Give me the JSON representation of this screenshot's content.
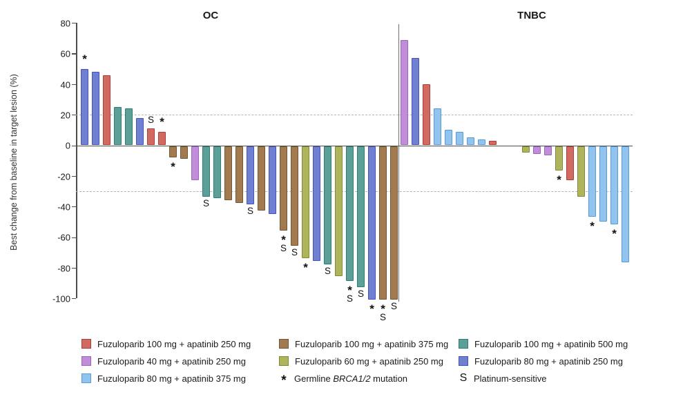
{
  "chart_data": {
    "type": "bar",
    "subtype": "waterfall",
    "ylabel": "Best change from baseline in target lesion (%)",
    "ylim": [
      -100,
      80
    ],
    "y_axis": {
      "ticks": [
        80,
        60,
        40,
        20,
        0,
        -20,
        -40,
        -60,
        -80,
        -100
      ]
    },
    "reference_lines": [
      20,
      -30
    ],
    "grid": "off",
    "legend_position": "bottom",
    "groups": {
      "f100a250": {
        "label": "Fuzuloparib 100 mg + apatinib 250 mg",
        "fill": "#D16A60",
        "border": "#B03C35"
      },
      "f100a375": {
        "label": "Fuzuloparib 100 mg + apatinib 375 mg",
        "fill": "#A17B4F",
        "border": "#71572F"
      },
      "f100a500": {
        "label": "Fuzuloparib 100 mg + apatinib 500 mg",
        "fill": "#5C9F98",
        "border": "#2E7D73"
      },
      "f40a250": {
        "label": "Fuzuloparib 40 mg + apatinib 250 mg",
        "fill": "#C08DD8",
        "border": "#9C64BE"
      },
      "f60a250": {
        "label": "Fuzuloparib 60 mg + apatinib 250 mg",
        "fill": "#AFB45C",
        "border": "#7F8B36"
      },
      "f80a250": {
        "label": "Fuzuloparib 80 mg + apatinib 250 mg",
        "fill": "#7080CF",
        "border": "#4353BE"
      },
      "f80a375": {
        "label": "Fuzuloparib 80 mg + apatinib 375 mg",
        "fill": "#90C4EC",
        "border": "#569ADE"
      }
    },
    "markers": {
      "star": {
        "symbol": "*",
        "label_prefix": "Germline ",
        "label_italic": "BRCA1/2",
        "label_suffix": " mutation"
      },
      "s": {
        "symbol": "S",
        "label": "Platinum-sensitive"
      }
    },
    "legend_columns": [
      [
        "f100a250",
        "f40a250",
        "f80a375"
      ],
      [
        "f100a375",
        "f60a250",
        "star"
      ],
      [
        "f100a500",
        "f80a250",
        "s"
      ]
    ],
    "panels": [
      {
        "name": "OC",
        "bars": [
          {
            "slot": 0,
            "group": "f80a250",
            "value": 50,
            "mark": "*"
          },
          {
            "slot": 1,
            "group": "f80a250",
            "value": 48
          },
          {
            "slot": 2,
            "group": "f100a250",
            "value": 46
          },
          {
            "slot": 3,
            "group": "f100a500",
            "value": 25
          },
          {
            "slot": 4,
            "group": "f100a500",
            "value": 24
          },
          {
            "slot": 5,
            "group": "f80a250",
            "value": 18
          },
          {
            "slot": 6,
            "group": "f100a250",
            "value": 11,
            "mark": "S"
          },
          {
            "slot": 7,
            "group": "f100a250",
            "value": 9,
            "mark": "*"
          },
          {
            "slot": 8,
            "group": "f100a375",
            "value": -7,
            "mark": "*"
          },
          {
            "slot": 9,
            "group": "f100a375",
            "value": -8
          },
          {
            "slot": 10,
            "group": "f40a250",
            "value": -22
          },
          {
            "slot": 11,
            "group": "f100a500",
            "value": -33,
            "mark": "S"
          },
          {
            "slot": 12,
            "group": "f100a500",
            "value": -34
          },
          {
            "slot": 13,
            "group": "f100a375",
            "value": -35
          },
          {
            "slot": 14,
            "group": "f100a375",
            "value": -37
          },
          {
            "slot": 15,
            "group": "f80a250",
            "value": -38,
            "mark": "S"
          },
          {
            "slot": 16,
            "group": "f100a375",
            "value": -42
          },
          {
            "slot": 17,
            "group": "f80a250",
            "value": -44
          },
          {
            "slot": 18,
            "group": "f100a375",
            "value": -55,
            "mark": "*S"
          },
          {
            "slot": 19,
            "group": "f100a375",
            "value": -65,
            "mark": "S"
          },
          {
            "slot": 20,
            "group": "f60a250",
            "value": -73,
            "mark": "*"
          },
          {
            "slot": 21,
            "group": "f80a250",
            "value": -75
          },
          {
            "slot": 22,
            "group": "f100a500",
            "value": -77,
            "mark": "S"
          },
          {
            "slot": 23,
            "group": "f60a250",
            "value": -85
          },
          {
            "slot": 24,
            "group": "f100a500",
            "value": -88,
            "mark": "*S"
          },
          {
            "slot": 25,
            "group": "f100a500",
            "value": -92,
            "mark": "S"
          },
          {
            "slot": 26,
            "group": "f80a250",
            "value": -100,
            "mark": "*"
          },
          {
            "slot": 27,
            "group": "f100a375",
            "value": -100,
            "mark": "*S"
          },
          {
            "slot": 28,
            "group": "f100a375",
            "value": -100,
            "mark": "S"
          }
        ]
      },
      {
        "name": "TNBC",
        "bars": [
          {
            "slot": 0,
            "group": "f40a250",
            "value": 69
          },
          {
            "slot": 1,
            "group": "f80a250",
            "value": 57
          },
          {
            "slot": 2,
            "group": "f100a250",
            "value": 40
          },
          {
            "slot": 3,
            "group": "f80a375",
            "value": 24
          },
          {
            "slot": 4,
            "group": "f80a375",
            "value": 10
          },
          {
            "slot": 5,
            "group": "f80a375",
            "value": 9
          },
          {
            "slot": 6,
            "group": "f80a375",
            "value": 5
          },
          {
            "slot": 7,
            "group": "f80a375",
            "value": 4
          },
          {
            "slot": 8,
            "group": "f100a250",
            "value": 3
          },
          {
            "slot": 11,
            "group": "f60a250",
            "value": -4
          },
          {
            "slot": 12,
            "group": "f40a250",
            "value": -5
          },
          {
            "slot": 13,
            "group": "f40a250",
            "value": -6
          },
          {
            "slot": 14,
            "group": "f60a250",
            "value": -16,
            "mark": "*"
          },
          {
            "slot": 15,
            "group": "f100a250",
            "value": -22
          },
          {
            "slot": 16,
            "group": "f60a250",
            "value": -33
          },
          {
            "slot": 17,
            "group": "f80a375",
            "value": -46,
            "mark": "*"
          },
          {
            "slot": 18,
            "group": "f80a375",
            "value": -49
          },
          {
            "slot": 19,
            "group": "f80a375",
            "value": -51,
            "mark": "*"
          },
          {
            "slot": 20,
            "group": "f80a375",
            "value": -76
          }
        ]
      }
    ]
  }
}
